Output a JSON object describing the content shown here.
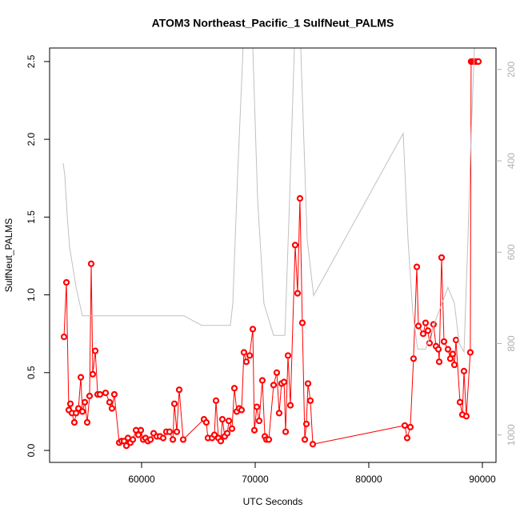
{
  "chart_data": {
    "type": "line",
    "title": "ATOM3 Northeast_Pacific_1 SulfNeut_PALMS",
    "x_label": "UTC Seconds",
    "y_label": "SulfNeut_PALMS",
    "xlim": [
      51900,
      91200
    ],
    "xticks": [
      60000,
      70000,
      80000,
      90000
    ],
    "ylim": [
      -0.077,
      2.587
    ],
    "yticks": [
      {
        "value": 0,
        "label": "0.0"
      },
      0.5,
      {
        "value": 1,
        "label": "1.0"
      },
      1.5,
      {
        "value": 2,
        "label": "2.0"
      },
      2.5
    ],
    "y2lim": [
      1060,
      153
    ],
    "y2ticks": [
      200,
      400,
      600,
      800,
      1000
    ],
    "y2_color": "#b0b0b0",
    "series": [
      {
        "color": "#ff0000",
        "markers": true,
        "x": [
          53169,
          53380,
          53590,
          53730,
          53870,
          54080,
          54230,
          54440,
          54650,
          54790,
          55000,
          55210,
          55420,
          55560,
          55700,
          55920,
          56130,
          56340,
          56830,
          57180,
          57390,
          57600,
          58030,
          58240,
          58450,
          58660,
          58800,
          59010,
          59230,
          59510,
          59720,
          59930,
          60140,
          60350,
          60560,
          60780,
          61060,
          61340,
          61620,
          61900,
          62180,
          62460,
          62750,
          62890,
          63100,
          63310,
          63660,
          65490,
          65700,
          65840,
          66200,
          66410,
          66550,
          66760,
          66970,
          67110,
          67320,
          67540,
          67680,
          67960,
          68170,
          68380,
          68590,
          68800,
          69010,
          69220,
          69510,
          69790,
          69930,
          70140,
          70350,
          70630,
          70850,
          70990,
          71200,
          71620,
          71900,
          72110,
          72320,
          72540,
          72680,
          72890,
          73100,
          73520,
          73730,
          73940,
          74150,
          74370,
          74510,
          74650,
          74860,
          75070,
          83170,
          83380,
          83660,
          83940,
          84230,
          84370,
          84790,
          85000,
          85210,
          85350,
          85700,
          85920,
          86130,
          86200,
          86410,
          86620,
          86970,
          87180,
          87390,
          87540,
          87680,
          88030,
          88240,
          88380,
          88590,
          88940,
          89010,
          89150,
          89300,
          89440,
          89580,
          89650
        ],
        "values": [
          0.73,
          1.08,
          0.26,
          0.3,
          0.24,
          0.18,
          0.24,
          0.27,
          0.47,
          0.25,
          0.31,
          0.18,
          0.35,
          1.2,
          0.49,
          0.64,
          0.36,
          0.36,
          0.37,
          0.31,
          0.27,
          0.36,
          0.05,
          0.06,
          0.06,
          0.03,
          0.08,
          0.05,
          0.07,
          0.13,
          0.1,
          0.13,
          0.07,
          0.08,
          0.06,
          0.07,
          0.11,
          0.09,
          0.09,
          0.08,
          0.12,
          0.12,
          0.07,
          0.3,
          0.12,
          0.39,
          0.07,
          0.2,
          0.18,
          0.08,
          0.08,
          0.1,
          0.32,
          0.08,
          0.06,
          0.2,
          0.09,
          0.11,
          0.19,
          0.14,
          0.4,
          0.25,
          0.27,
          0.26,
          0.63,
          0.57,
          0.61,
          0.78,
          0.13,
          0.28,
          0.19,
          0.45,
          0.09,
          0.07,
          0.07,
          0.42,
          0.5,
          0.24,
          0.43,
          0.44,
          0.12,
          0.61,
          0.29,
          1.32,
          1.01,
          1.62,
          0.82,
          0.07,
          0.17,
          0.43,
          0.32,
          0.04,
          0.16,
          0.08,
          0.15,
          0.59,
          1.18,
          0.8,
          0.75,
          0.82,
          0.77,
          0.69,
          0.81,
          0.67,
          0.65,
          0.57,
          1.24,
          0.7,
          0.65,
          0.59,
          0.62,
          0.55,
          0.71,
          0.31,
          0.23,
          0.51,
          0.22,
          0.63,
          2.5,
          2.5,
          2.5,
          2.5,
          2.5,
          2.5
        ]
      },
      {
        "color": "#c0c0c0",
        "axis": "y2",
        "markers": false,
        "x": [
          53100,
          53240,
          53450,
          53660,
          54230,
          54790,
          63730,
          65280,
          67820,
          68030,
          68450,
          68940,
          69790,
          70210,
          70770,
          71620,
          72610,
          73030,
          73450,
          74010,
          74580,
          75140,
          83030,
          83450,
          83870,
          84300,
          85000,
          85920,
          86970,
          87540,
          87960,
          88380,
          88730,
          88940,
          89300
        ],
        "values": [
          405,
          432,
          519,
          589,
          677,
          739,
          739,
          760,
          760,
          712,
          432,
          151,
          151,
          484,
          712,
          782,
          782,
          484,
          151,
          151,
          572,
          695,
          340,
          572,
          730,
          812,
          812,
          747,
          677,
          712,
          800,
          818,
          572,
          396,
          151
        ]
      }
    ]
  }
}
